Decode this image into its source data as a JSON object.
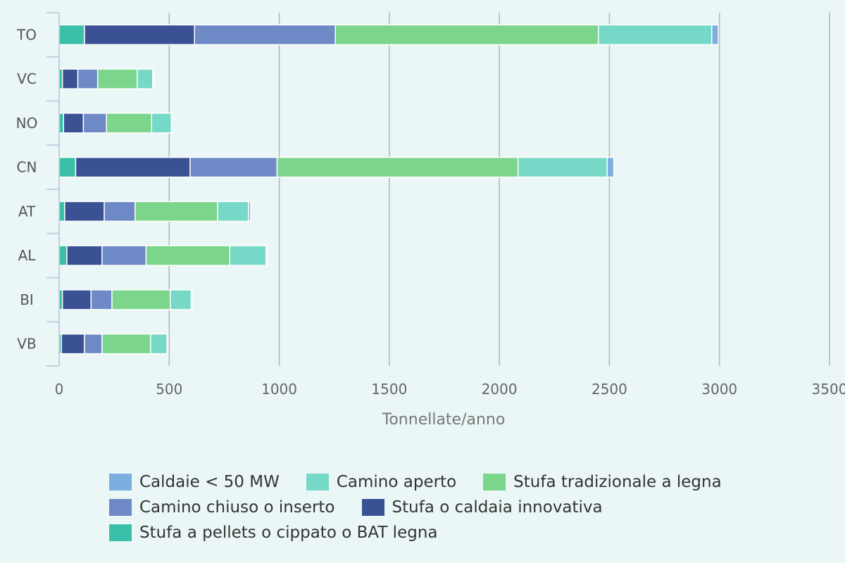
{
  "chart_data": {
    "type": "bar",
    "orientation": "horizontal",
    "stacked": true,
    "categories": [
      "TO",
      "VC",
      "NO",
      "CN",
      "AT",
      "AL",
      "BI",
      "VB"
    ],
    "series": [
      {
        "name": "Stufa a pellets o cippato o BAT legna",
        "color": "#3bbfa9",
        "values": [
          115,
          15,
          20,
          75,
          25,
          35,
          15,
          10
        ]
      },
      {
        "name": "Stufa o caldaia innovativa",
        "color": "#3a5294",
        "values": [
          500,
          70,
          90,
          520,
          180,
          160,
          130,
          105
        ]
      },
      {
        "name": "Camino chiuso o inserto",
        "color": "#6e8ac6",
        "values": [
          640,
          90,
          105,
          395,
          140,
          200,
          95,
          80
        ]
      },
      {
        "name": "Stufa tradizionale a legna",
        "color": "#7bd58a",
        "values": [
          1195,
          180,
          205,
          1095,
          375,
          380,
          265,
          220
        ]
      },
      {
        "name": "Camino aperto",
        "color": "#76d8c6",
        "values": [
          515,
          70,
          90,
          405,
          140,
          165,
          95,
          75
        ]
      },
      {
        "name": "Caldaie < 50 MW",
        "color": "#7daee0",
        "values": [
          30,
          5,
          5,
          30,
          10,
          5,
          5,
          5
        ]
      }
    ],
    "xlabel": "Tonnellate/anno",
    "xlim": [
      0,
      3500
    ],
    "xticks": [
      0,
      500,
      1000,
      1500,
      2000,
      2500,
      3000,
      3500
    ],
    "grid": "vertical",
    "legend": "bottom"
  },
  "legend_rows": [
    [
      5,
      4,
      3
    ],
    [
      2,
      1
    ],
    [
      0
    ]
  ]
}
